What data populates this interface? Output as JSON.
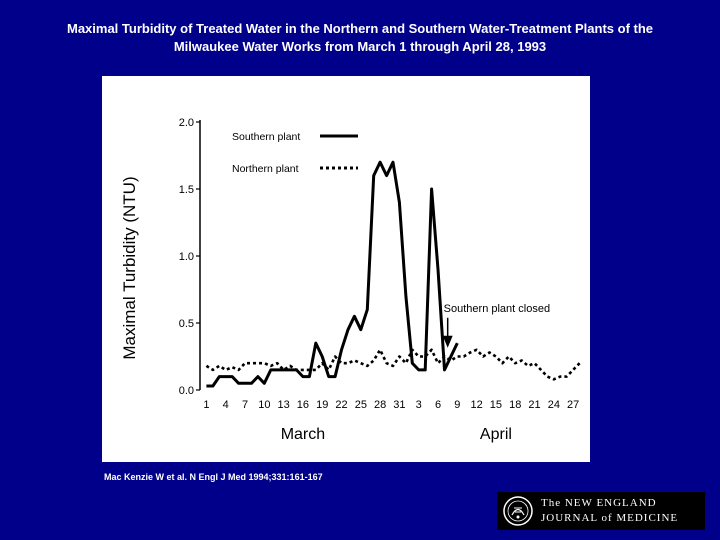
{
  "slide": {
    "title_line1": "Maximal Turbidity of Treated Water in the Northern and Southern Water-Treatment Plants of the",
    "title_line2": "Milwaukee Water Works from March 1 through April 28, 1993",
    "citation": "Mac Kenzie W et al. N Engl J Med 1994;331:161-167"
  },
  "logo": {
    "line1": "The NEW ENGLAND",
    "line2": "JOURNAL of MEDICINE"
  },
  "chart_data": {
    "type": "line",
    "title": "",
    "xlabel": "",
    "ylabel": "Maximal Turbidity (NTU)",
    "ylim": [
      0,
      2.0
    ],
    "yticks": [
      "0.0",
      "0.5",
      "1.0",
      "1.5",
      "2.0"
    ],
    "x_ticks": [
      {
        "day": 1,
        "label": "1"
      },
      {
        "day": 4,
        "label": "4"
      },
      {
        "day": 7,
        "label": "7"
      },
      {
        "day": 10,
        "label": "10"
      },
      {
        "day": 13,
        "label": "13"
      },
      {
        "day": 16,
        "label": "16"
      },
      {
        "day": 19,
        "label": "19"
      },
      {
        "day": 22,
        "label": "22"
      },
      {
        "day": 25,
        "label": "25"
      },
      {
        "day": 28,
        "label": "28"
      },
      {
        "day": 31,
        "label": "31"
      },
      {
        "day": 34,
        "label": "3"
      },
      {
        "day": 37,
        "label": "6"
      },
      {
        "day": 40,
        "label": "9"
      },
      {
        "day": 43,
        "label": "12"
      },
      {
        "day": 46,
        "label": "15"
      },
      {
        "day": 49,
        "label": "18"
      },
      {
        "day": 52,
        "label": "21"
      },
      {
        "day": 55,
        "label": "24"
      },
      {
        "day": 58,
        "label": "27"
      }
    ],
    "month_labels": [
      {
        "label": "March",
        "day": 16
      },
      {
        "label": "April",
        "day": 46
      }
    ],
    "legend_position": "top-left",
    "series": [
      {
        "name": "Southern plant",
        "style": "solid",
        "color": "#000000",
        "x": [
          1,
          2,
          3,
          4,
          5,
          6,
          7,
          8,
          9,
          10,
          11,
          12,
          13,
          14,
          15,
          16,
          17,
          18,
          19,
          20,
          21,
          22,
          23,
          24,
          25,
          26,
          27,
          28,
          29,
          30,
          31,
          32,
          33,
          34,
          35,
          36,
          37,
          38,
          39,
          40
        ],
        "y": [
          0.03,
          0.03,
          0.1,
          0.1,
          0.1,
          0.05,
          0.05,
          0.05,
          0.1,
          0.05,
          0.15,
          0.15,
          0.15,
          0.15,
          0.15,
          0.1,
          0.1,
          0.35,
          0.25,
          0.1,
          0.1,
          0.3,
          0.45,
          0.55,
          0.45,
          0.6,
          1.6,
          1.7,
          1.6,
          1.7,
          1.4,
          0.7,
          0.2,
          0.15,
          0.15,
          1.5,
          0.9,
          0.15,
          0.25,
          0.35
        ]
      },
      {
        "name": "Northern plant",
        "style": "dotted",
        "color": "#000000",
        "x": [
          1,
          2,
          3,
          4,
          5,
          6,
          7,
          8,
          9,
          10,
          11,
          12,
          13,
          14,
          15,
          16,
          17,
          18,
          19,
          20,
          21,
          22,
          23,
          24,
          25,
          26,
          27,
          28,
          29,
          30,
          31,
          32,
          33,
          34,
          35,
          36,
          37,
          38,
          39,
          40,
          41,
          42,
          43,
          44,
          45,
          46,
          47,
          48,
          49,
          50,
          51,
          52,
          53,
          54,
          55,
          56,
          57,
          58,
          59
        ],
        "y": [
          0.18,
          0.15,
          0.18,
          0.15,
          0.17,
          0.15,
          0.2,
          0.2,
          0.2,
          0.2,
          0.18,
          0.2,
          0.15,
          0.18,
          0.15,
          0.15,
          0.15,
          0.15,
          0.2,
          0.15,
          0.25,
          0.2,
          0.2,
          0.22,
          0.2,
          0.18,
          0.22,
          0.3,
          0.2,
          0.18,
          0.25,
          0.2,
          0.3,
          0.25,
          0.25,
          0.3,
          0.2,
          0.25,
          0.22,
          0.25,
          0.25,
          0.28,
          0.3,
          0.25,
          0.28,
          0.25,
          0.2,
          0.25,
          0.2,
          0.22,
          0.18,
          0.2,
          0.15,
          0.1,
          0.08,
          0.1,
          0.1,
          0.15,
          0.2
        ]
      }
    ],
    "annotations": [
      {
        "text": "Southern plant closed",
        "day": 38.5,
        "value": 0.3
      }
    ]
  }
}
